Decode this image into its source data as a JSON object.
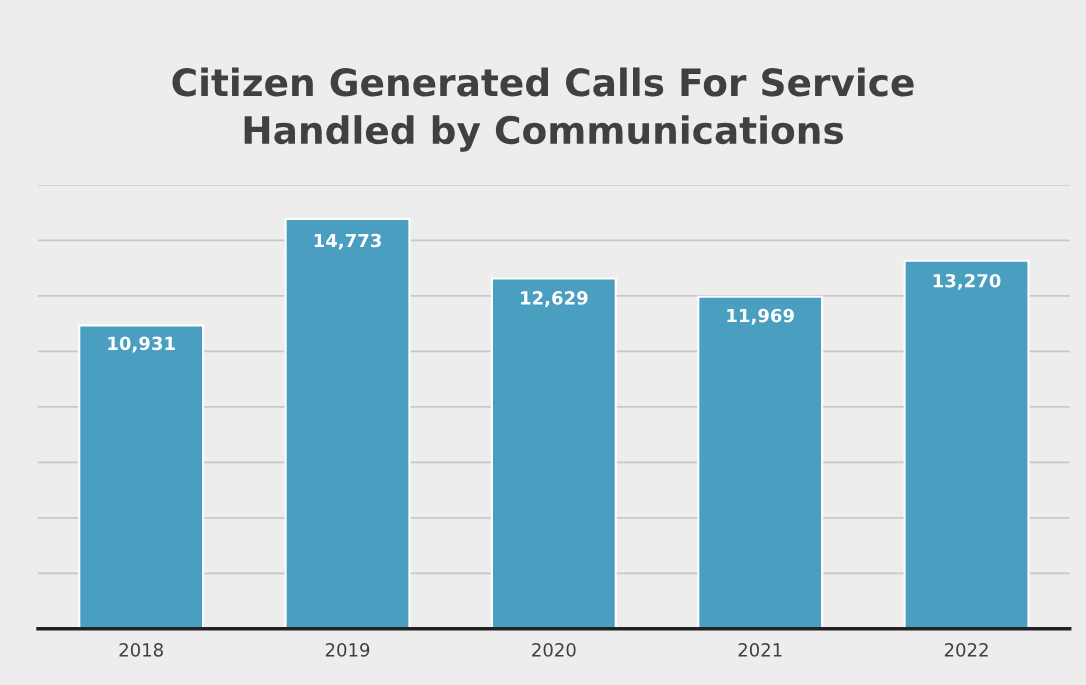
{
  "chart_data": {
    "type": "bar",
    "title": "Citizen Generated Calls For Service\nHandled by Communications",
    "categories": [
      "2018",
      "2019",
      "2020",
      "2021",
      "2022"
    ],
    "values": [
      10931,
      14773,
      12629,
      11969,
      13270
    ],
    "value_labels": [
      "10,931",
      "14,773",
      "12,629",
      "11,969",
      "13,270"
    ],
    "color": "#4a9fc0",
    "ylim": [
      0,
      16000
    ],
    "yticks": [
      {
        "value": 0,
        "label": null
      },
      {
        "value": 2000,
        "label": null
      },
      {
        "value": 4000,
        "label": null
      },
      {
        "value": 6000,
        "label": null
      },
      {
        "value": 8000,
        "label": null
      },
      {
        "value": 10000,
        "label": null
      },
      {
        "value": 12000,
        "label": null
      },
      {
        "value": 14000,
        "label": null
      },
      {
        "value": 16000,
        "label": null
      }
    ],
    "grid": "y",
    "tick_labels": "x",
    "legend": false
  }
}
